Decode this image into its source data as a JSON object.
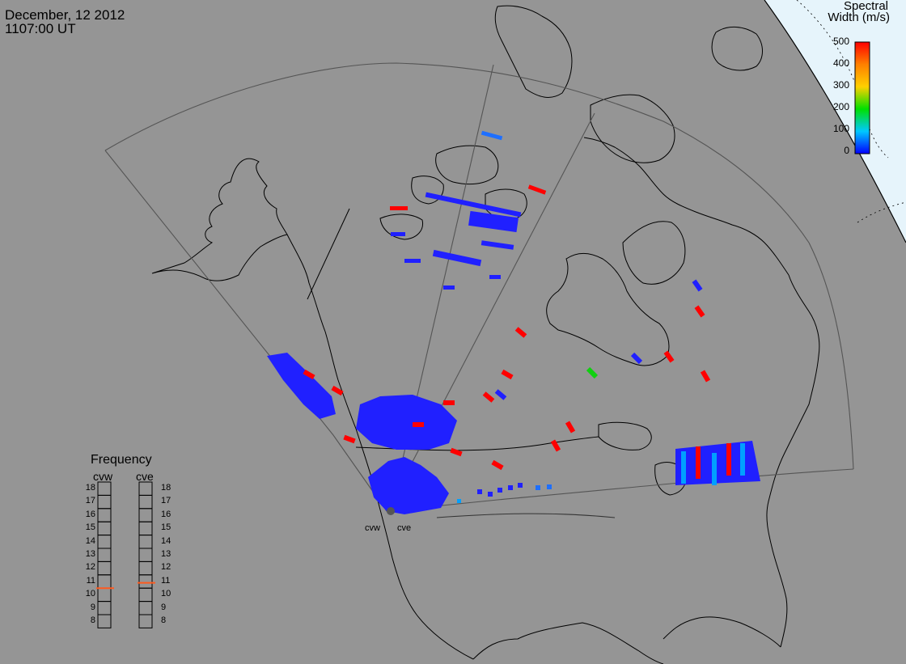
{
  "header": {
    "date": "December, 12 2012",
    "time": "1107:00 UT"
  },
  "colorbar": {
    "title_line1": "Spectral",
    "title_line2": "Width (m/s)",
    "ticks": [
      "500",
      "400",
      "300",
      "200",
      "100",
      "0"
    ],
    "range": [
      0,
      500
    ],
    "colors": [
      "#0000ff",
      "#00c8ff",
      "#00e000",
      "#ffd000",
      "#ff8000",
      "#ff0000"
    ]
  },
  "radars": {
    "west": "cvw",
    "east": "cve"
  },
  "frequency": {
    "title": "Frequency",
    "left_label": "cvw",
    "right_label": "cve",
    "scale": [
      "18",
      "17",
      "16",
      "15",
      "14",
      "13",
      "12",
      "11",
      "10",
      "9",
      "8"
    ],
    "cvw_mhz": 10.5,
    "cve_mhz": 10.9
  },
  "colors": {
    "land": "#959595",
    "space": "#ffffff",
    "polar": "#e6f4fb",
    "echo_low": "#2020ff",
    "echo_high": "#ff0000",
    "freq_marker": "#ff5a1e"
  }
}
